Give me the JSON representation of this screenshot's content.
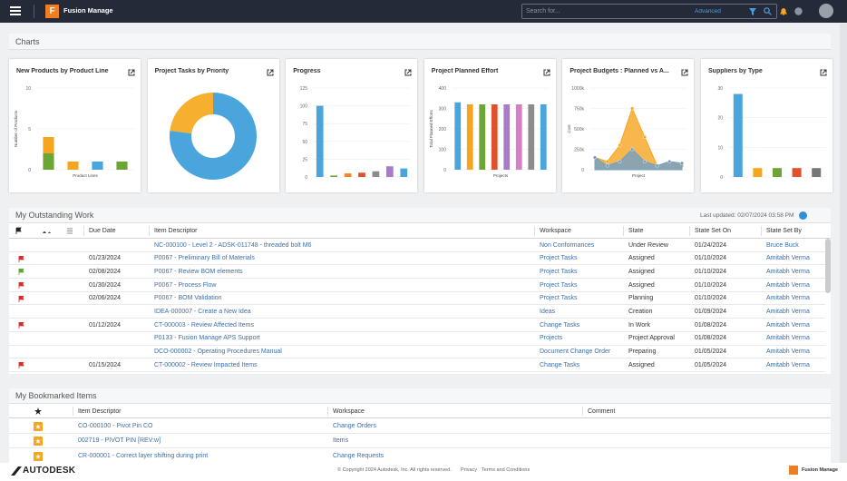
{
  "header": {
    "app_name": "Fusion Manage",
    "search_placeholder": "Search for...",
    "advanced": "Advanced"
  },
  "charts_section": {
    "title": "Charts"
  },
  "chart_data": [
    {
      "type": "stacked-bar",
      "title": "New Products by Product Line",
      "ylabel": "Number of Products",
      "xlabel": "Product Lines",
      "categories": [
        null,
        null,
        null,
        null
      ],
      "ylim": [
        0,
        10
      ],
      "yticks": [
        0,
        5,
        10
      ],
      "grid": true,
      "series": [
        {
          "color": "#6da534",
          "values": [
            2,
            0,
            0,
            1
          ]
        },
        {
          "color": "#f6a51f",
          "values": [
            2,
            1,
            0,
            0
          ]
        },
        {
          "color": "#4aa5dd",
          "values": [
            0,
            0,
            1,
            0
          ]
        }
      ]
    },
    {
      "type": "donut",
      "title": "Project Tasks by Priority",
      "values": [
        77,
        23
      ],
      "colors": [
        "#4aa5dd",
        "#f6b02e"
      ]
    },
    {
      "type": "bar",
      "title": "Progress",
      "categories": [
        null,
        null,
        null,
        null,
        null,
        null,
        null
      ],
      "ylim": [
        0,
        125
      ],
      "yticks": [
        0,
        25,
        50,
        75,
        100,
        125
      ],
      "grid": true,
      "values": [
        100,
        2,
        5,
        6,
        8,
        15,
        12
      ],
      "colors": [
        "#4aa5dd",
        "#6da534",
        "#f0862a",
        "#e0502a",
        "#8c8c8c",
        "#a77bca",
        "#4aa5dd"
      ]
    },
    {
      "type": "bar",
      "title": "Project Planned Effort",
      "ylabel": "Total Planned Efforts",
      "xlabel": "Projects",
      "categories": [
        null,
        null,
        null,
        null,
        null,
        null,
        null,
        null
      ],
      "ylim": [
        0,
        400
      ],
      "yticks": [
        0,
        100,
        200,
        300,
        400
      ],
      "grid": true,
      "values": [
        330,
        320,
        320,
        320,
        320,
        320,
        320,
        320
      ],
      "colors": [
        "#4aa5dd",
        "#f6a51f",
        "#6da534",
        "#e0502a",
        "#a77bca",
        "#d77fc2",
        "#8c8c8c",
        "#4aa5dd"
      ]
    },
    {
      "type": "area",
      "title": "Project Budgets : Planned vs A...",
      "ylabel": "Cost",
      "xlabel": "Project",
      "categories": [
        null,
        null,
        null,
        null,
        null,
        null,
        null,
        null
      ],
      "ylim": [
        0,
        1000000
      ],
      "yticks": [
        0,
        {
          "value": 250000,
          "label": "250k"
        },
        {
          "value": 500000,
          "label": "500k"
        },
        {
          "value": 750000,
          "label": "750k"
        },
        {
          "value": 1000000,
          "label": "1000k"
        }
      ],
      "grid": true,
      "series": [
        {
          "color": "#f6a51f",
          "values": [
            150000,
            100000,
            300000,
            750000,
            400000,
            50000,
            100000,
            50000
          ]
        },
        {
          "color": "#6f9fc8",
          "values": [
            150000,
            50000,
            100000,
            250000,
            100000,
            50000,
            100000,
            80000
          ]
        }
      ]
    },
    {
      "type": "bar",
      "title": "Suppliers by Type",
      "categories": [
        null,
        null,
        null,
        null,
        null
      ],
      "ylim": [
        0,
        30
      ],
      "yticks": [
        0,
        10,
        20,
        30
      ],
      "grid": true,
      "values": [
        28,
        3,
        3,
        3,
        3
      ],
      "colors": [
        "#4aa5dd",
        "#f6a51f",
        "#6da534",
        "#e0502a",
        "#777777"
      ]
    }
  ],
  "outstanding": {
    "title": "My Outstanding Work",
    "last_updated": "Last updated: 02/07/2024 03:58 PM",
    "columns": [
      "Due Date",
      "Item Descriptor",
      "Workspace",
      "State",
      "State Set On",
      "State Set By"
    ],
    "rows": [
      {
        "item": "NC-000100 - Level 2 - ADSK-011748 - threaded bolt M6",
        "workspace": "Non Conformances",
        "state": "Under Review",
        "state_set_on": "01/24/2024",
        "state_set_by": "Bruce Buck"
      },
      {
        "flag": "#e02a2a",
        "due": "01/23/2024",
        "item": "P0067 - Preliminary Bill of Materials",
        "workspace": "Project Tasks",
        "state": "Assigned",
        "state_set_on": "01/10/2024",
        "state_set_by": "Amitabh Verma"
      },
      {
        "flag": "#5aa62e",
        "due": "02/08/2024",
        "item": "P0067 - Review BOM elements",
        "workspace": "Project Tasks",
        "state": "Assigned",
        "state_set_on": "01/10/2024",
        "state_set_by": "Amitabh Verma"
      },
      {
        "flag": "#e02a2a",
        "due": "01/30/2024",
        "item": "P0067 - Process Flow",
        "workspace": "Project Tasks",
        "state": "Assigned",
        "state_set_on": "01/10/2024",
        "state_set_by": "Amitabh Verma"
      },
      {
        "flag": "#e02a2a",
        "due": "02/06/2024",
        "item": "P0067 - BOM Validation",
        "workspace": "Project Tasks",
        "state": "Planning",
        "state_set_on": "01/10/2024",
        "state_set_by": "Amitabh Verma"
      },
      {
        "item": "IDEA-000007 - Create a New Idea",
        "workspace": "Ideas",
        "state": "Creation",
        "state_set_on": "01/09/2024",
        "state_set_by": "Amitabh Verma"
      },
      {
        "flag": "#e02a2a",
        "due": "01/12/2024",
        "item": "CT-000003 - Review Affected Items",
        "workspace": "Change Tasks",
        "state": "In Work",
        "state_set_on": "01/08/2024",
        "state_set_by": "Amitabh Verma"
      },
      {
        "item": "P0133 - Fusion Manage APS Support",
        "workspace": "Projects",
        "state": "Project Approval",
        "state_set_on": "01/08/2024",
        "state_set_by": "Amitabh Verma"
      },
      {
        "item": "DCO-000002 - Operating Procedures Manual",
        "workspace": "Document Change Order",
        "state": "Preparing",
        "state_set_on": "01/05/2024",
        "state_set_by": "Amitabh Verma"
      },
      {
        "flag": "#e02a2a",
        "due": "01/15/2024",
        "item": "CT-000002 - Review Impacted Items",
        "workspace": "Change Tasks",
        "state": "Assigned",
        "state_set_on": "01/05/2024",
        "state_set_by": "Amitabh Verma"
      }
    ]
  },
  "bookmarks": {
    "title": "My Bookmarked Items",
    "columns": [
      "Item Descriptor",
      "Workspace",
      "Comment"
    ],
    "rows": [
      {
        "item": "CO-000100 - Pivot Pin CO",
        "workspace": "Change Orders"
      },
      {
        "item": "002719 - PIVOT PIN [REV:w]",
        "workspace": "Items"
      },
      {
        "item": "CR-000001 - Correct layer shifting during print",
        "workspace": "Change Requests"
      }
    ]
  },
  "footer": {
    "brand": "AUTODESK",
    "copyright": "© Copyright 2024 Autodesk, Inc. All rights reserved.",
    "privacy": "Privacy",
    "terms": "Terms and Conditions",
    "product": "Fusion Manage"
  }
}
